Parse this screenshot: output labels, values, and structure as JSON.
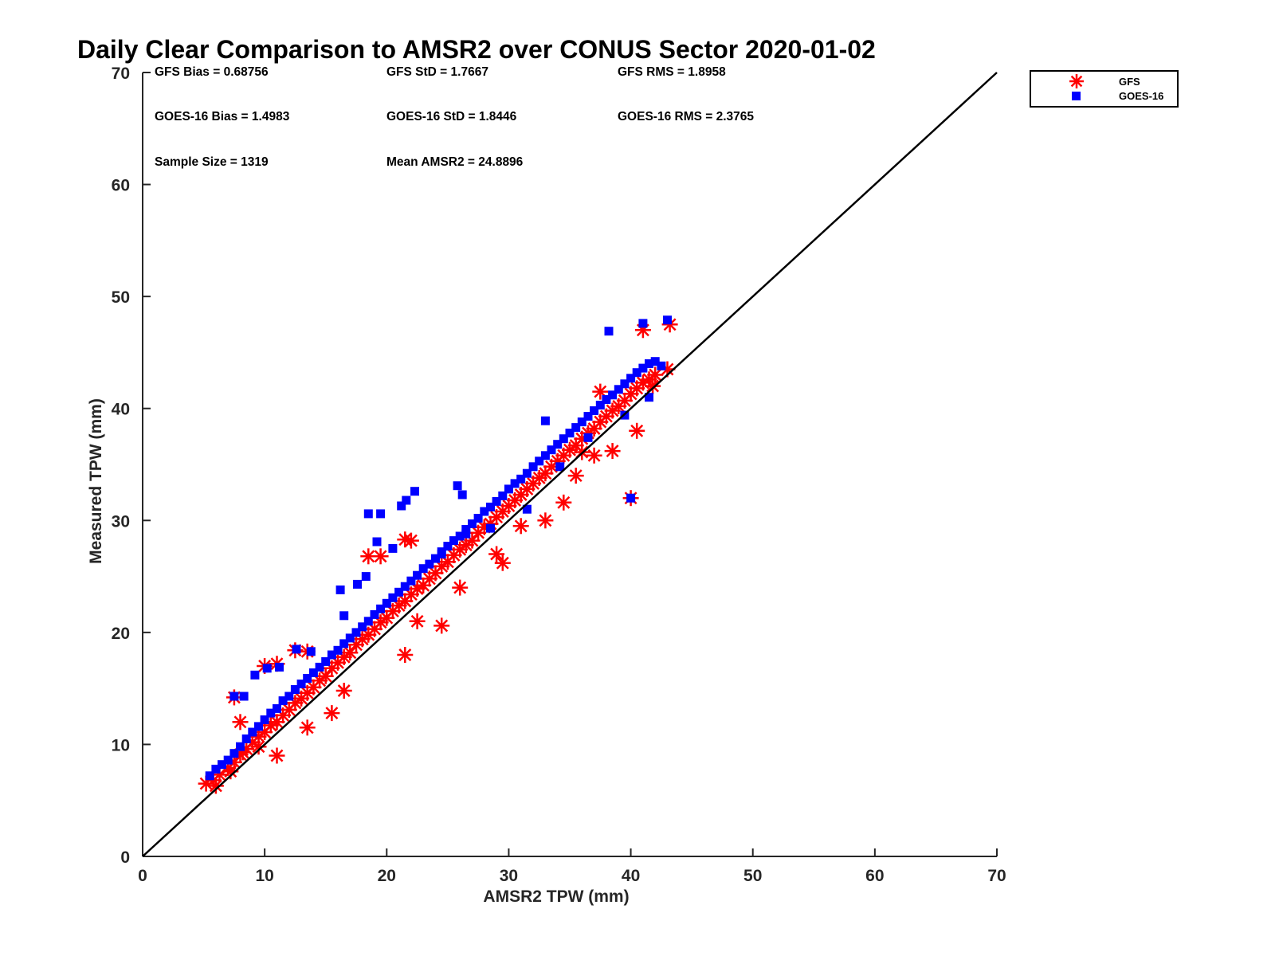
{
  "chart_data": {
    "type": "scatter",
    "title": "Daily Clear Comparison to AMSR2 over CONUS Sector 2020-01-02",
    "xlabel": "AMSR2 TPW (mm)",
    "ylabel": "Measured TPW (mm)",
    "xlim": [
      0,
      70
    ],
    "ylim": [
      0,
      70
    ],
    "xticks": [
      "0",
      "10",
      "20",
      "30",
      "40",
      "50",
      "60",
      "70"
    ],
    "yticks": [
      "0",
      "10",
      "20",
      "30",
      "40",
      "50",
      "60",
      "70"
    ],
    "grid": false,
    "legend_position": "outside-top-right",
    "one_to_one_line": true,
    "stats": [
      "GFS Bias = 0.68756",
      "GFS StD = 1.7667",
      "GFS RMS = 1.8958",
      "GOES-16 Bias = 1.4983",
      "GOES-16 StD = 1.8446",
      "GOES-16 RMS = 2.3765",
      "Sample Size = 1319",
      "Mean AMSR2 = 24.8896"
    ],
    "series": [
      {
        "name": "GFS",
        "color": "#ff0000",
        "marker": "asterisk",
        "x": [
          5.2,
          5.8,
          6.3,
          7.0,
          7.5,
          8.0,
          8.5,
          9.0,
          9.5,
          10.0,
          10.5,
          11.0,
          11.5,
          12.0,
          12.5,
          13.0,
          13.5,
          14.0,
          14.5,
          15.0,
          15.5,
          16.0,
          16.5,
          17.0,
          17.5,
          18.0,
          18.5,
          19.0,
          19.5,
          20.0,
          20.5,
          21.0,
          21.5,
          22.0,
          22.5,
          23.0,
          23.5,
          24.0,
          24.5,
          25.0,
          25.5,
          26.0,
          26.5,
          27.0,
          27.5,
          28.0,
          28.5,
          29.0,
          29.5,
          30.0,
          30.5,
          31.0,
          31.5,
          32.0,
          32.5,
          33.0,
          33.5,
          34.0,
          34.5,
          35.0,
          35.5,
          36.0,
          36.5,
          37.0,
          37.5,
          38.0,
          38.5,
          39.0,
          39.5,
          40.0,
          40.5,
          41.0,
          41.5,
          42.0,
          43.0,
          7.5,
          8.0,
          10.0,
          11.0,
          12.5,
          13.5,
          18.5,
          19.5,
          21.5,
          22.0,
          21.5,
          24.5,
          29.5,
          33.0,
          34.5,
          36.0,
          37.5,
          40.0,
          41.0,
          41.8,
          43.2,
          11.0,
          9.5,
          8.2,
          7.2,
          6.0,
          13.5,
          15.5,
          16.5,
          22.5,
          26.0,
          29.0,
          31.0,
          35.5,
          37.0,
          38.5,
          40.5
        ],
        "y": [
          6.5,
          6.8,
          7.3,
          7.9,
          8.4,
          9.1,
          9.6,
          10.2,
          10.7,
          11.1,
          11.7,
          12.0,
          12.6,
          13.1,
          13.7,
          14.1,
          14.6,
          15.1,
          15.7,
          16.1,
          16.8,
          17.3,
          17.8,
          18.2,
          18.9,
          19.4,
          19.8,
          20.3,
          20.9,
          21.3,
          21.9,
          22.4,
          22.8,
          23.4,
          23.9,
          24.2,
          24.8,
          25.3,
          25.9,
          26.3,
          26.9,
          27.4,
          27.8,
          28.2,
          28.9,
          29.4,
          29.7,
          30.3,
          30.8,
          31.3,
          31.8,
          32.3,
          32.8,
          33.3,
          33.8,
          34.2,
          34.8,
          35.3,
          35.8,
          36.3,
          36.7,
          37.3,
          37.8,
          38.2,
          38.8,
          39.3,
          39.8,
          40.2,
          40.7,
          41.3,
          41.8,
          42.3,
          42.6,
          43.0,
          43.5,
          14.2,
          12.0,
          17.0,
          17.2,
          18.4,
          18.3,
          26.8,
          26.8,
          28.3,
          28.2,
          18.0,
          20.6,
          26.2,
          30.0,
          31.6,
          36.1,
          41.5,
          32.0,
          47.0,
          42.0,
          47.5,
          9.0,
          9.8,
          9.3,
          7.6,
          6.3,
          11.5,
          12.8,
          14.8,
          21.0,
          24.0,
          27.0,
          29.5,
          34.0,
          35.8,
          36.2,
          38.0
        ]
      },
      {
        "name": "GOES-16",
        "color": "#0000ff",
        "marker": "square",
        "x": [
          5.5,
          6.0,
          6.5,
          7.0,
          7.5,
          8.0,
          8.5,
          9.0,
          9.5,
          10.0,
          10.5,
          11.0,
          11.5,
          12.0,
          12.5,
          13.0,
          13.5,
          14.0,
          14.5,
          15.0,
          15.5,
          16.0,
          16.5,
          17.0,
          17.5,
          18.0,
          18.5,
          19.0,
          19.5,
          20.0,
          20.5,
          21.0,
          21.5,
          22.0,
          22.5,
          23.0,
          23.5,
          24.0,
          24.5,
          25.0,
          25.5,
          26.0,
          26.5,
          27.0,
          27.5,
          28.0,
          28.5,
          29.0,
          29.5,
          30.0,
          30.5,
          31.0,
          31.5,
          32.0,
          32.5,
          33.0,
          33.5,
          34.0,
          34.5,
          35.0,
          35.5,
          36.0,
          36.5,
          37.0,
          37.5,
          38.0,
          38.5,
          39.0,
          39.5,
          40.0,
          40.5,
          41.0,
          41.5,
          42.0,
          42.5,
          7.5,
          8.3,
          9.2,
          10.2,
          11.2,
          12.6,
          13.8,
          16.2,
          17.6,
          18.5,
          19.5,
          19.2,
          21.2,
          21.6,
          22.3,
          25.8,
          26.2,
          33.0,
          38.2,
          40.0,
          41.0,
          43.0,
          16.5,
          18.3,
          20.5,
          24.5,
          26.5,
          28.5,
          31.5,
          34.2,
          36.5,
          39.5,
          41.5
        ],
        "y": [
          7.2,
          7.8,
          8.2,
          8.6,
          9.2,
          9.8,
          10.5,
          11.1,
          11.6,
          12.2,
          12.8,
          13.2,
          13.9,
          14.3,
          14.9,
          15.4,
          15.9,
          16.4,
          16.9,
          17.4,
          18.0,
          18.4,
          19.0,
          19.5,
          20.0,
          20.5,
          21.0,
          21.6,
          22.1,
          22.6,
          23.1,
          23.6,
          24.1,
          24.6,
          25.1,
          25.7,
          26.1,
          26.6,
          27.2,
          27.7,
          28.2,
          28.6,
          29.2,
          29.7,
          30.2,
          30.8,
          31.2,
          31.7,
          32.2,
          32.8,
          33.3,
          33.7,
          34.2,
          34.8,
          35.3,
          35.8,
          36.3,
          36.8,
          37.3,
          37.8,
          38.3,
          38.8,
          39.3,
          39.8,
          40.3,
          40.8,
          41.2,
          41.7,
          42.2,
          42.7,
          43.2,
          43.6,
          44.0,
          44.2,
          43.8,
          14.3,
          14.3,
          16.2,
          16.8,
          16.9,
          18.5,
          18.3,
          23.8,
          24.3,
          30.6,
          30.6,
          28.1,
          31.3,
          31.8,
          32.6,
          33.1,
          32.3,
          38.9,
          46.9,
          32.0,
          47.6,
          47.9,
          21.5,
          25.0,
          27.5,
          27.0,
          28.8,
          29.3,
          31.0,
          34.8,
          37.4,
          39.4,
          41.0
        ]
      }
    ]
  }
}
